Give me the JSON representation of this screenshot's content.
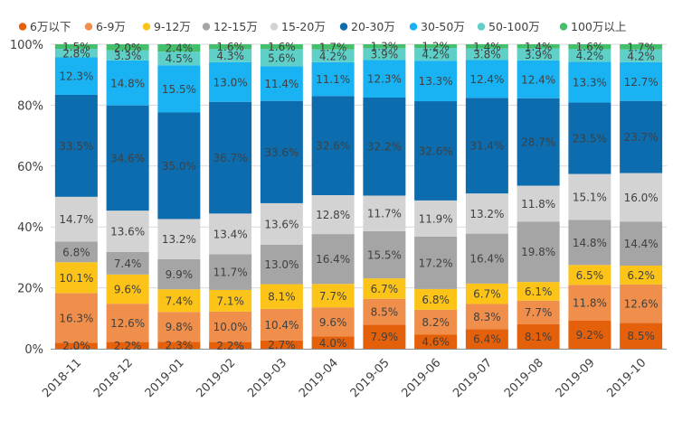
{
  "chart_data": {
    "type": "bar",
    "stacked": true,
    "normalized": true,
    "title": "",
    "xlabel": "",
    "ylabel": "",
    "ylim": [
      0,
      100
    ],
    "yticks": [
      0,
      20,
      40,
      60,
      80,
      100
    ],
    "y_tick_labels": [
      "0%",
      "20%",
      "40%",
      "60%",
      "80%",
      "100%"
    ],
    "legend_position": "top",
    "categories": [
      "2018-11",
      "2018-12",
      "2019-01",
      "2019-02",
      "2019-03",
      "2019-04",
      "2019-05",
      "2019-06",
      "2019-07",
      "2019-08",
      "2019-09",
      "2019-10"
    ],
    "series": [
      {
        "name": "6万以下",
        "color": "#e5600a",
        "values": [
          2.0,
          2.2,
          2.3,
          2.2,
          2.7,
          4.0,
          7.9,
          4.6,
          6.4,
          8.1,
          9.2,
          8.5
        ],
        "labels": [
          "2.0%",
          "2.2%",
          "2.3%",
          "2.2%",
          "2.7%",
          "4.0%",
          "7.9%",
          "4.6%",
          "6.4%",
          "8.1%",
          "9.2%",
          "8.5%"
        ]
      },
      {
        "name": "6-9万",
        "color": "#f08f4b",
        "values": [
          16.3,
          12.6,
          9.8,
          10.0,
          10.4,
          9.6,
          8.5,
          8.2,
          8.3,
          7.7,
          11.8,
          12.6
        ],
        "labels": [
          "16.3%",
          "12.6%",
          "9.8%",
          "10.0%",
          "10.4%",
          "9.6%",
          "8.5%",
          "8.2%",
          "8.3%",
          "7.7%",
          "11.8%",
          "12.6%"
        ]
      },
      {
        "name": "9-12万",
        "color": "#fcc419",
        "values": [
          10.1,
          9.6,
          7.4,
          7.1,
          8.1,
          7.7,
          6.7,
          6.8,
          6.7,
          6.1,
          6.5,
          6.2
        ],
        "labels": [
          "10.1%",
          "9.6%",
          "7.4%",
          "7.1%",
          "8.1%",
          "7.7%",
          "6.7%",
          "6.8%",
          "6.7%",
          "6.1%",
          "6.5%",
          "6.2%"
        ]
      },
      {
        "name": "12-15万",
        "color": "#a5a5a5",
        "values": [
          6.8,
          7.4,
          9.9,
          11.7,
          13.0,
          16.4,
          15.5,
          17.2,
          16.4,
          19.8,
          14.8,
          14.4
        ],
        "labels": [
          "6.8%",
          "7.4%",
          "9.9%",
          "11.7%",
          "13.0%",
          "16.4%",
          "15.5%",
          "17.2%",
          "16.4%",
          "19.8%",
          "14.8%",
          "14.4%"
        ]
      },
      {
        "name": "15-20万",
        "color": "#d3d3d3",
        "values": [
          14.7,
          13.6,
          13.2,
          13.4,
          13.6,
          12.8,
          11.7,
          11.9,
          13.2,
          11.8,
          15.1,
          16.0
        ],
        "labels": [
          "14.7%",
          "13.6%",
          "13.2%",
          "13.4%",
          "13.6%",
          "12.8%",
          "11.7%",
          "11.9%",
          "13.2%",
          "11.8%",
          "15.1%",
          "16.0%"
        ]
      },
      {
        "name": "20-30万",
        "color": "#0c6cad",
        "values": [
          33.5,
          34.6,
          35.0,
          36.7,
          33.6,
          32.6,
          32.2,
          32.6,
          31.4,
          28.7,
          23.5,
          23.7
        ],
        "labels": [
          "33.5%",
          "34.6%",
          "35.0%",
          "36.7%",
          "33.6%",
          "32.6%",
          "32.2%",
          "32.6%",
          "31.4%",
          "28.7%",
          "23.5%",
          "23.7%"
        ]
      },
      {
        "name": "30-50万",
        "color": "#19b2f2",
        "values": [
          12.3,
          14.8,
          15.5,
          13.0,
          11.4,
          11.1,
          12.3,
          13.3,
          12.4,
          12.4,
          13.3,
          12.7
        ],
        "labels": [
          "12.3%",
          "14.8%",
          "15.5%",
          "13.0%",
          "11.4%",
          "11.1%",
          "12.3%",
          "13.3%",
          "12.4%",
          "12.4%",
          "13.3%",
          "12.7%"
        ]
      },
      {
        "name": "50-100万",
        "color": "#5fd0c8",
        "values": [
          2.8,
          3.3,
          4.5,
          4.3,
          5.6,
          4.2,
          3.9,
          4.2,
          3.8,
          3.9,
          4.2,
          4.2
        ],
        "labels": [
          "2.8%",
          "3.3%",
          "4.5%",
          "4.3%",
          "5.6%",
          "4.2%",
          "3.9%",
          "4.2%",
          "3.8%",
          "3.9%",
          "4.2%",
          "4.2%"
        ]
      },
      {
        "name": "100万以上",
        "color": "#44c06d",
        "values": [
          1.5,
          2.0,
          2.4,
          1.6,
          1.6,
          1.7,
          1.3,
          1.2,
          1.4,
          1.4,
          1.6,
          1.7
        ],
        "labels": [
          "1.5%",
          "2.0%",
          "2.4%",
          "1.6%",
          "1.6%",
          "1.7%",
          "1.3%",
          "1.2%",
          "1.4%",
          "1.4%",
          "1.6%",
          "1.7%"
        ]
      }
    ]
  }
}
